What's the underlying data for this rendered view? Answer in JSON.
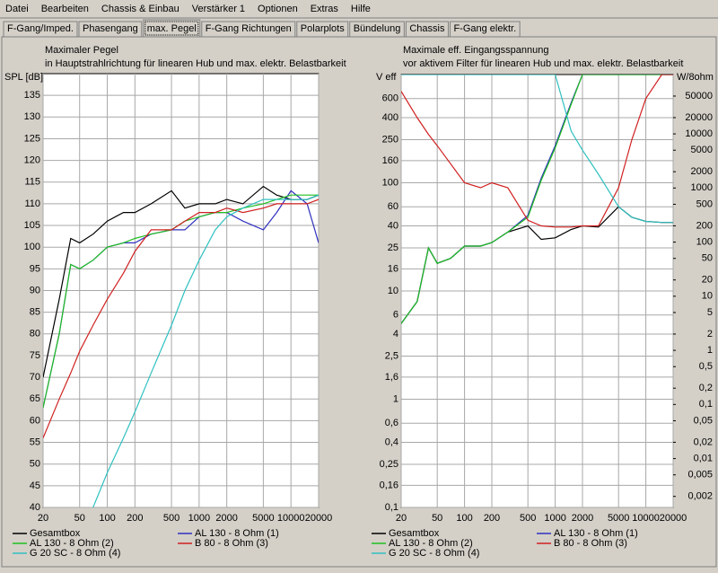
{
  "menu": [
    "Datei",
    "Bearbeiten",
    "Chassis & Einbau",
    "Verstärker 1",
    "Optionen",
    "Extras",
    "Hilfe"
  ],
  "tabs": [
    "F-Gang/Imped.",
    "Phasengang",
    "max. Pegel",
    "F-Gang Richtungen",
    "Polarplots",
    "Bündelung",
    "Chassis",
    "F-Gang elektr."
  ],
  "active_tab": 2,
  "chart_data": [
    {
      "type": "line",
      "title": "Maximaler Pegel",
      "subtitle": "in Hauptstrahlrichtung für linearen Hub und max. elektr. Belastbarkeit",
      "y_label": "SPL [dB]",
      "x_log": true,
      "grid": true,
      "x": [
        20,
        30,
        40,
        50,
        70,
        100,
        150,
        200,
        300,
        500,
        700,
        1000,
        1500,
        2000,
        3000,
        5000,
        7000,
        10000,
        15000,
        20000
      ],
      "xlim": [
        20,
        20000
      ],
      "xticks": [
        20,
        50,
        100,
        200,
        500,
        1000,
        2000,
        5000,
        10000,
        20000
      ],
      "ylim": [
        40,
        140
      ],
      "yticks": [
        40,
        45,
        50,
        55,
        60,
        65,
        70,
        75,
        80,
        85,
        90,
        95,
        100,
        105,
        110,
        115,
        120,
        125,
        130,
        135
      ],
      "series": [
        {
          "name": "Gesamtbox",
          "color": "#000000",
          "values": [
            70,
            88,
            102,
            101,
            103,
            106,
            108,
            108,
            110,
            113,
            109,
            110,
            110,
            111,
            110,
            114,
            112,
            111,
            111,
            112
          ]
        },
        {
          "name": "AL 130 - 8 Ohm (1)",
          "color": "#3030c0",
          "values": [
            63,
            80,
            96,
            95,
            97,
            100,
            101,
            101,
            103,
            104,
            104,
            107,
            108,
            108,
            106,
            104,
            108,
            113,
            110,
            101
          ]
        },
        {
          "name": "AL 130 - 8 Ohm (2)",
          "color": "#20c020",
          "values": [
            63,
            80,
            96,
            95,
            97,
            100,
            101,
            102,
            103,
            104,
            106,
            107,
            108,
            108,
            109,
            110,
            111,
            112,
            112,
            112
          ]
        },
        {
          "name": "B 80 - 8 Ohm (3)",
          "color": "#d02020",
          "values": [
            56,
            65,
            71,
            76,
            82,
            88,
            94,
            99,
            104,
            104,
            106,
            108,
            108,
            109,
            108,
            109,
            110,
            110,
            110,
            111
          ]
        },
        {
          "name": "G 20 SC - 8 Ohm (4)",
          "color": "#30c0c0",
          "values": [
            null,
            null,
            null,
            null,
            40,
            48,
            56,
            62,
            71,
            82,
            90,
            97,
            104,
            107,
            109,
            111,
            111,
            111,
            111,
            112
          ]
        }
      ]
    },
    {
      "type": "line",
      "title": "Maximale eff. Eingangsspannung",
      "subtitle": "vor aktivem Filter für linearen Hub und max. elektr. Belastbarkeit",
      "y_label": "V eff",
      "y2_label": "W/8ohm",
      "x_log": true,
      "y_log": true,
      "y2_log": true,
      "grid": true,
      "x": [
        20,
        30,
        40,
        50,
        70,
        100,
        150,
        200,
        300,
        500,
        700,
        1000,
        1500,
        2000,
        3000,
        5000,
        7000,
        10000,
        15000,
        20000
      ],
      "xlim": [
        20,
        20000
      ],
      "xticks": [
        20,
        50,
        100,
        200,
        500,
        1000,
        2000,
        5000,
        10000,
        20000
      ],
      "ylim": [
        0.1,
        1000
      ],
      "yticks": [
        {
          "value": 0.1,
          "label": "0,1"
        },
        {
          "value": 0.16,
          "label": "0,16"
        },
        {
          "value": 0.25,
          "label": "0,25"
        },
        {
          "value": 0.4,
          "label": "0,4"
        },
        {
          "value": 0.6,
          "label": "0,6"
        },
        1,
        {
          "value": 1.6,
          "label": "1,6"
        },
        {
          "value": 2.5,
          "label": "2,5"
        },
        4,
        6,
        10,
        16,
        25,
        40,
        60,
        100,
        160,
        250,
        400,
        600
      ],
      "y2lim": [
        0.00125,
        125000
      ],
      "y2ticks": [
        {
          "value": 0.002,
          "label": "0,002"
        },
        {
          "value": 0.005,
          "label": "0,005"
        },
        {
          "value": 0.01,
          "label": "0,01"
        },
        {
          "value": 0.02,
          "label": "0,02"
        },
        {
          "value": 0.05,
          "label": "0,05"
        },
        {
          "value": 0.1,
          "label": "0,1"
        },
        {
          "value": 0.2,
          "label": "0,2"
        },
        {
          "value": 0.5,
          "label": "0,5"
        },
        1,
        2,
        5,
        10,
        20,
        50,
        100,
        200,
        500,
        1000,
        2000,
        5000,
        10000,
        20000,
        50000
      ],
      "series": [
        {
          "name": "Gesamtbox",
          "color": "#000000",
          "values": [
            5,
            8,
            25,
            18,
            20,
            26,
            26,
            28,
            35,
            40,
            30,
            31,
            37,
            40,
            39,
            60,
            48,
            44,
            43,
            43
          ]
        },
        {
          "name": "AL 130 - 8 Ohm (1)",
          "color": "#3030c0",
          "values": [
            5,
            8,
            25,
            18,
            20,
            26,
            26,
            28,
            35,
            50,
            110,
            220,
            550,
            1000,
            1000,
            1000,
            1000,
            1000,
            1000,
            1000
          ]
        },
        {
          "name": "AL 130 - 8 Ohm (2)",
          "color": "#20c020",
          "values": [
            5,
            8,
            25,
            18,
            20,
            26,
            26,
            28,
            35,
            48,
            105,
            210,
            530,
            1000,
            1000,
            1000,
            1000,
            1000,
            1000,
            1000
          ]
        },
        {
          "name": "B 80 - 8 Ohm (3)",
          "color": "#d02020",
          "values": [
            700,
            400,
            280,
            220,
            150,
            100,
            90,
            100,
            90,
            45,
            40,
            39,
            39,
            40,
            40,
            90,
            250,
            600,
            1000,
            1000
          ]
        },
        {
          "name": "G 20 SC - 8 Ohm (4)",
          "color": "#30c0c0",
          "values": [
            1000,
            1000,
            1000,
            1000,
            1000,
            1000,
            1000,
            1000,
            1000,
            1000,
            1000,
            1000,
            300,
            200,
            120,
            60,
            48,
            44,
            43,
            43
          ]
        }
      ]
    }
  ]
}
